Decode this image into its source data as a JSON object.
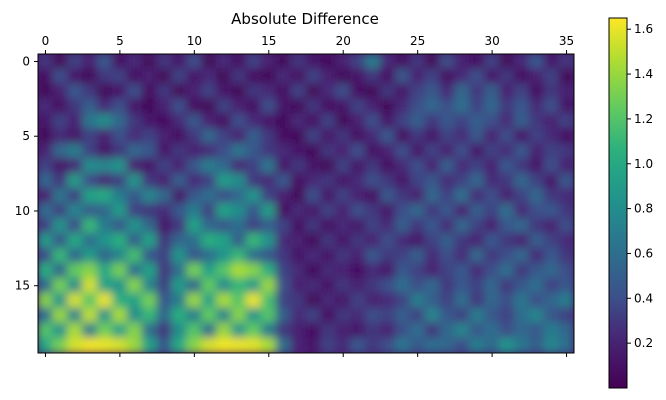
{
  "chart_data": {
    "type": "heatmap",
    "title": "Absolute Difference",
    "xlabel": "",
    "ylabel": "",
    "colormap": "viridis",
    "interpolation": "smooth",
    "x_position": "top",
    "shape": [
      20,
      36
    ],
    "xlim": [
      -0.5,
      35.5
    ],
    "ylim": [
      19.5,
      -0.5
    ],
    "x_ticks": [
      0,
      5,
      10,
      15,
      20,
      25,
      30,
      35
    ],
    "y_ticks": [
      0,
      5,
      10,
      15
    ],
    "colorbar": {
      "range": [
        0.0,
        1.65
      ],
      "ticks": [
        0.2,
        0.4,
        0.6,
        0.8,
        1.0,
        1.2,
        1.4,
        1.6
      ]
    },
    "grid": false,
    "legend": "none",
    "rows": [
      [
        0.3,
        0.05,
        0.35,
        0.2,
        0.45,
        0.1,
        0.25,
        0.05,
        0.3,
        0.15,
        0.4,
        0.05,
        0.25,
        0.1,
        0.35,
        0.2,
        0.05,
        0.3,
        0.15,
        0.05,
        0.2,
        0.35,
        0.7,
        0.25,
        0.1,
        0.3,
        0.05,
        0.4,
        0.2,
        0.1,
        0.35,
        0.05,
        0.25,
        0.45,
        0.15,
        0.3
      ],
      [
        0.1,
        0.4,
        0.15,
        0.05,
        0.3,
        0.35,
        0.1,
        0.2,
        0.05,
        0.35,
        0.15,
        0.25,
        0.05,
        0.3,
        0.1,
        0.05,
        0.25,
        0.1,
        0.35,
        0.2,
        0.05,
        0.15,
        0.3,
        0.1,
        0.45,
        0.2,
        0.35,
        0.1,
        0.25,
        0.4,
        0.15,
        0.3,
        0.1,
        0.2,
        0.35,
        0.05
      ],
      [
        0.05,
        0.2,
        0.45,
        0.3,
        0.05,
        0.15,
        0.4,
        0.1,
        0.3,
        0.05,
        0.2,
        0.35,
        0.15,
        0.05,
        0.3,
        0.25,
        0.1,
        0.35,
        0.05,
        0.25,
        0.4,
        0.1,
        0.05,
        0.3,
        0.15,
        0.35,
        0.45,
        0.25,
        0.55,
        0.3,
        0.5,
        0.2,
        0.35,
        0.1,
        0.3,
        0.2
      ],
      [
        0.25,
        0.1,
        0.3,
        0.5,
        0.25,
        0.4,
        0.15,
        0.05,
        0.2,
        0.4,
        0.1,
        0.05,
        0.35,
        0.2,
        0.1,
        0.4,
        0.15,
        0.05,
        0.3,
        0.1,
        0.15,
        0.35,
        0.2,
        0.05,
        0.25,
        0.4,
        0.55,
        0.4,
        0.6,
        0.35,
        0.55,
        0.3,
        0.45,
        0.25,
        0.4,
        0.15
      ],
      [
        0.15,
        0.35,
        0.2,
        0.65,
        0.8,
        0.55,
        0.3,
        0.15,
        0.1,
        0.25,
        0.45,
        0.2,
        0.1,
        0.4,
        0.25,
        0.15,
        0.05,
        0.25,
        0.1,
        0.35,
        0.05,
        0.2,
        0.4,
        0.15,
        0.35,
        0.5,
        0.3,
        0.45,
        0.35,
        0.5,
        0.4,
        0.25,
        0.5,
        0.3,
        0.2,
        0.35
      ],
      [
        0.05,
        0.25,
        0.15,
        0.35,
        0.2,
        0.4,
        0.25,
        0.35,
        0.2,
        0.1,
        0.3,
        0.55,
        0.35,
        0.2,
        0.5,
        0.3,
        0.1,
        0.05,
        0.35,
        0.15,
        0.3,
        0.1,
        0.25,
        0.45,
        0.1,
        0.3,
        0.15,
        0.35,
        0.25,
        0.45,
        0.2,
        0.4,
        0.15,
        0.35,
        0.25,
        0.1
      ],
      [
        0.2,
        0.55,
        0.7,
        0.35,
        0.15,
        0.3,
        0.55,
        0.45,
        0.15,
        0.3,
        0.2,
        0.25,
        0.4,
        0.65,
        0.45,
        0.3,
        0.25,
        0.15,
        0.05,
        0.3,
        0.2,
        0.4,
        0.1,
        0.2,
        0.4,
        0.15,
        0.35,
        0.2,
        0.4,
        0.15,
        0.35,
        0.25,
        0.45,
        0.2,
        0.35,
        0.3
      ],
      [
        0.35,
        0.15,
        0.25,
        0.8,
        0.75,
        0.85,
        0.2,
        0.15,
        0.35,
        0.2,
        0.45,
        0.7,
        0.55,
        0.25,
        0.35,
        0.65,
        0.15,
        0.3,
        0.15,
        0.05,
        0.35,
        0.15,
        0.3,
        0.1,
        0.25,
        0.4,
        0.2,
        0.5,
        0.25,
        0.35,
        0.2,
        0.45,
        0.3,
        0.15,
        0.4,
        0.2
      ],
      [
        0.55,
        0.3,
        0.9,
        0.4,
        0.25,
        0.35,
        0.85,
        0.3,
        0.2,
        0.5,
        0.25,
        0.35,
        0.9,
        0.8,
        0.3,
        0.25,
        0.45,
        0.1,
        0.25,
        0.3,
        0.15,
        0.25,
        0.4,
        0.3,
        0.15,
        0.35,
        0.45,
        0.25,
        0.35,
        0.55,
        0.25,
        0.3,
        0.55,
        0.35,
        0.15,
        0.45
      ],
      [
        0.2,
        0.65,
        0.35,
        0.95,
        1.0,
        0.7,
        0.45,
        0.75,
        0.55,
        0.15,
        0.45,
        0.6,
        0.4,
        0.55,
        0.85,
        0.35,
        0.2,
        0.05,
        0.4,
        0.15,
        0.35,
        0.2,
        0.1,
        0.45,
        0.3,
        0.2,
        0.55,
        0.35,
        0.6,
        0.25,
        0.4,
        0.2,
        0.35,
        0.55,
        0.3,
        0.25
      ],
      [
        0.6,
        0.35,
        0.75,
        0.5,
        0.55,
        0.9,
        0.35,
        0.3,
        0.25,
        0.45,
        0.7,
        0.35,
        0.95,
        0.8,
        0.45,
        0.9,
        0.1,
        0.25,
        0.15,
        0.35,
        0.2,
        0.4,
        0.3,
        0.15,
        0.4,
        0.55,
        0.3,
        0.45,
        0.2,
        0.5,
        0.35,
        0.6,
        0.25,
        0.4,
        0.45,
        0.3
      ],
      [
        0.35,
        0.85,
        0.4,
        1.1,
        0.7,
        0.45,
        0.85,
        0.55,
        0.15,
        0.3,
        0.95,
        0.55,
        0.45,
        0.6,
        0.35,
        0.5,
        0.35,
        0.1,
        0.3,
        0.1,
        0.25,
        0.15,
        0.35,
        0.25,
        0.5,
        0.3,
        0.45,
        0.25,
        0.55,
        0.35,
        0.2,
        0.45,
        0.55,
        0.3,
        0.2,
        0.4
      ],
      [
        0.9,
        0.45,
        1.0,
        0.6,
        0.85,
        1.05,
        0.5,
        0.95,
        0.3,
        0.55,
        0.6,
        1.05,
        0.95,
        0.5,
        1.1,
        0.85,
        0.25,
        0.2,
        0.05,
        0.3,
        0.15,
        0.3,
        0.2,
        0.4,
        0.25,
        0.15,
        0.35,
        0.5,
        0.3,
        0.2,
        0.45,
        0.3,
        0.2,
        0.5,
        0.35,
        0.25
      ],
      [
        0.4,
        1.1,
        0.55,
        0.9,
        0.55,
        0.75,
        1.15,
        0.45,
        0.35,
        0.85,
        0.45,
        0.6,
        0.85,
        1.1,
        0.6,
        0.45,
        0.3,
        0.15,
        0.25,
        0.15,
        0.3,
        0.2,
        0.45,
        0.3,
        0.35,
        0.5,
        0.25,
        0.4,
        0.25,
        0.55,
        0.3,
        0.4,
        0.55,
        0.25,
        0.45,
        0.3
      ],
      [
        1.05,
        0.55,
        1.25,
        1.35,
        1.0,
        1.3,
        0.6,
        0.95,
        0.3,
        0.6,
        1.3,
        0.95,
        1.2,
        1.45,
        1.35,
        1.05,
        0.35,
        0.25,
        0.05,
        0.25,
        0.2,
        0.1,
        0.25,
        0.15,
        0.45,
        0.35,
        0.2,
        0.35,
        0.45,
        0.25,
        0.4,
        0.6,
        0.3,
        0.45,
        0.55,
        0.4
      ],
      [
        0.55,
        1.3,
        0.8,
        1.55,
        0.95,
        0.85,
        1.35,
        0.75,
        0.35,
        0.9,
        0.55,
        1.25,
        0.8,
        1.1,
        0.9,
        1.4,
        0.4,
        0.2,
        0.25,
        0.15,
        0.3,
        0.2,
        0.3,
        0.4,
        0.6,
        0.4,
        0.55,
        0.3,
        0.45,
        0.35,
        0.55,
        0.3,
        0.45,
        0.6,
        0.35,
        0.45
      ],
      [
        1.35,
        0.85,
        1.55,
        1.2,
        1.6,
        1.05,
        0.95,
        1.3,
        0.45,
        0.7,
        1.4,
        0.95,
        1.45,
        1.2,
        1.6,
        1.15,
        0.35,
        0.3,
        0.05,
        0.25,
        0.15,
        0.35,
        0.2,
        0.25,
        0.35,
        0.7,
        0.5,
        0.35,
        0.6,
        0.3,
        0.55,
        0.4,
        0.65,
        0.4,
        0.55,
        0.7
      ],
      [
        0.6,
        1.4,
        0.75,
        1.5,
        0.85,
        1.45,
        0.8,
        1.1,
        0.55,
        1.05,
        0.7,
        1.25,
        0.75,
        1.35,
        0.85,
        1.2,
        0.5,
        0.25,
        0.35,
        0.1,
        0.3,
        0.25,
        0.4,
        0.35,
        0.5,
        0.35,
        0.75,
        0.45,
        0.35,
        0.7,
        0.45,
        0.35,
        0.6,
        0.75,
        0.45,
        0.35
      ],
      [
        1.2,
        0.85,
        1.45,
        0.7,
        1.3,
        0.95,
        1.35,
        0.6,
        0.3,
        0.8,
        1.2,
        0.6,
        1.4,
        0.85,
        1.25,
        0.7,
        0.3,
        0.2,
        0.1,
        0.3,
        0.2,
        0.15,
        0.3,
        0.2,
        0.4,
        0.6,
        0.3,
        0.55,
        0.75,
        0.45,
        0.6,
        0.4,
        0.55,
        0.45,
        0.7,
        0.55
      ],
      [
        1.0,
        1.3,
        1.55,
        1.62,
        1.6,
        1.55,
        1.4,
        0.95,
        0.45,
        1.0,
        1.35,
        1.55,
        1.62,
        1.6,
        1.58,
        1.45,
        0.6,
        0.2,
        0.15,
        0.35,
        0.25,
        0.45,
        0.3,
        0.4,
        0.65,
        0.45,
        0.6,
        0.55,
        0.4,
        0.7,
        0.55,
        0.85,
        0.65,
        0.5,
        0.75,
        0.6
      ]
    ]
  }
}
